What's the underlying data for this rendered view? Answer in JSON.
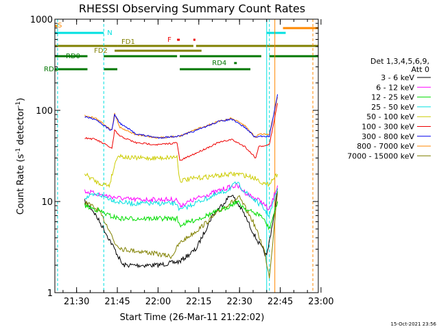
{
  "chart_data": {
    "type": "line",
    "title": "RHESSI Observing Summary Count Rates",
    "xlabel": "Start Time (26-Mar-11 21:22:02)",
    "ylabel_main": "Count Rate (s",
    "ylabel_exp1": "-1",
    "ylabel_mid": " detector",
    "ylabel_exp2": "-1",
    "ylabel_end": ")",
    "yscale": "log",
    "ylim": [
      1,
      1000
    ],
    "xlim": [
      "21:22",
      "22:59"
    ],
    "x_ticks": [
      "21:30",
      "21:45",
      "22:00",
      "22:15",
      "22:30",
      "22:45",
      "23:00"
    ],
    "y_ticks": [
      "1",
      "10",
      "100",
      "1000"
    ],
    "legend_header": [
      "Det 1,3,4,5,6,9,",
      "Att 0"
    ],
    "legend_placement": "right",
    "series": [
      {
        "name": "3 - 6 keV",
        "color": "#000000",
        "points": [
          [
            "21:33",
            10
          ],
          [
            "21:36",
            8
          ],
          [
            "21:40",
            5
          ],
          [
            "21:44",
            3
          ],
          [
            "21:47",
            2
          ],
          [
            "21:52",
            2
          ],
          [
            "22:00",
            2
          ],
          [
            "22:08",
            2.2
          ],
          [
            "22:14",
            3
          ],
          [
            "22:20",
            7
          ],
          [
            "22:27",
            12
          ],
          [
            "22:31",
            8
          ],
          [
            "22:36",
            4
          ],
          [
            "22:40",
            2.5
          ],
          [
            "22:43",
            8
          ],
          [
            "22:44",
            14
          ]
        ]
      },
      {
        "name": "6 - 12 keV",
        "color": "#ff00ff",
        "points": [
          [
            "21:33",
            13
          ],
          [
            "21:38",
            12
          ],
          [
            "21:45",
            11
          ],
          [
            "21:50",
            10.5
          ],
          [
            "22:00",
            10.5
          ],
          [
            "22:07",
            10.5
          ],
          [
            "22:08",
            9
          ],
          [
            "22:15",
            11
          ],
          [
            "22:25",
            14
          ],
          [
            "22:29",
            15
          ],
          [
            "22:33",
            12
          ],
          [
            "22:38",
            10
          ],
          [
            "22:41",
            8
          ],
          [
            "22:44",
            15
          ]
        ]
      },
      {
        "name": "12 - 25 keV",
        "color": "#00dd00",
        "points": [
          [
            "21:33",
            9
          ],
          [
            "21:38",
            8
          ],
          [
            "21:42",
            7
          ],
          [
            "21:46",
            6.5
          ],
          [
            "21:55",
            6.5
          ],
          [
            "22:07",
            6.5
          ],
          [
            "22:08",
            5.5
          ],
          [
            "22:15",
            6.5
          ],
          [
            "22:25",
            8.5
          ],
          [
            "22:29",
            10
          ],
          [
            "22:33",
            8
          ],
          [
            "22:38",
            7
          ],
          [
            "22:41",
            5
          ],
          [
            "22:44",
            10
          ]
        ]
      },
      {
        "name": "25 - 50 keV",
        "color": "#00e0e0",
        "points": [
          [
            "21:33",
            11
          ],
          [
            "21:38",
            12
          ],
          [
            "21:45",
            10
          ],
          [
            "21:50",
            9.5
          ],
          [
            "22:00",
            9.5
          ],
          [
            "22:07",
            9.5
          ],
          [
            "22:08",
            8
          ],
          [
            "22:15",
            10
          ],
          [
            "22:25",
            13
          ],
          [
            "22:29",
            16
          ],
          [
            "22:33",
            12
          ],
          [
            "22:38",
            9
          ],
          [
            "22:41",
            7
          ],
          [
            "22:44",
            14
          ]
        ]
      },
      {
        "name": "50 - 100 keV",
        "color": "#cccc00",
        "points": [
          [
            "21:33",
            20
          ],
          [
            "21:38",
            16
          ],
          [
            "21:42",
            15
          ],
          [
            "21:45",
            32
          ],
          [
            "21:50",
            30
          ],
          [
            "22:00",
            30
          ],
          [
            "22:07",
            31
          ],
          [
            "22:08",
            17
          ],
          [
            "22:14",
            18
          ],
          [
            "22:20",
            19
          ],
          [
            "22:28",
            20
          ],
          [
            "22:30",
            20
          ],
          [
            "22:36",
            18
          ],
          [
            "22:40",
            15
          ],
          [
            "22:44",
            20
          ]
        ]
      },
      {
        "name": "100 - 300 keV",
        "color": "#ee0000",
        "points": [
          [
            "21:33",
            50
          ],
          [
            "21:37",
            48
          ],
          [
            "21:42",
            40
          ],
          [
            "21:43",
            38
          ],
          [
            "21:44",
            60
          ],
          [
            "21:46",
            52
          ],
          [
            "21:52",
            44
          ],
          [
            "22:00",
            42
          ],
          [
            "22:07",
            44
          ],
          [
            "22:08",
            28
          ],
          [
            "22:14",
            34
          ],
          [
            "22:22",
            44
          ],
          [
            "22:27",
            48
          ],
          [
            "22:32",
            40
          ],
          [
            "22:36",
            30
          ],
          [
            "22:37",
            40
          ],
          [
            "22:41",
            42
          ],
          [
            "22:44",
            120
          ]
        ]
      },
      {
        "name": "300 - 800 keV",
        "color": "#0000ee",
        "points": [
          [
            "21:33",
            85
          ],
          [
            "21:37",
            80
          ],
          [
            "21:42",
            62
          ],
          [
            "21:43",
            60
          ],
          [
            "21:44",
            90
          ],
          [
            "21:46",
            72
          ],
          [
            "21:52",
            55
          ],
          [
            "22:00",
            50
          ],
          [
            "22:07",
            52
          ],
          [
            "22:08",
            52
          ],
          [
            "22:14",
            60
          ],
          [
            "22:22",
            75
          ],
          [
            "22:27",
            80
          ],
          [
            "22:32",
            65
          ],
          [
            "22:36",
            50
          ],
          [
            "22:37",
            52
          ],
          [
            "22:41",
            52
          ],
          [
            "22:44",
            150
          ]
        ]
      },
      {
        "name": "800 - 7000 keV",
        "color": "#ff8800",
        "points": [
          [
            "21:33",
            88
          ],
          [
            "21:37",
            82
          ],
          [
            "21:42",
            64
          ],
          [
            "21:43",
            62
          ],
          [
            "21:44",
            92
          ],
          [
            "21:46",
            65
          ],
          [
            "21:52",
            54
          ],
          [
            "22:00",
            50
          ],
          [
            "22:07",
            52
          ],
          [
            "22:08",
            52
          ],
          [
            "22:14",
            62
          ],
          [
            "22:22",
            75
          ],
          [
            "22:27",
            82
          ],
          [
            "22:32",
            68
          ],
          [
            "22:36",
            50
          ],
          [
            "22:37",
            55
          ],
          [
            "22:41",
            55
          ],
          [
            "22:44",
            140
          ]
        ]
      },
      {
        "name": "7000 - 15000 keV",
        "color": "#808000",
        "points": [
          [
            "21:33",
            10
          ],
          [
            "21:38",
            8
          ],
          [
            "21:42",
            5
          ],
          [
            "21:44",
            3.5
          ],
          [
            "21:47",
            3
          ],
          [
            "21:55",
            2.8
          ],
          [
            "22:05",
            2.5
          ],
          [
            "22:08",
            3.5
          ],
          [
            "22:15",
            5
          ],
          [
            "22:25",
            9
          ],
          [
            "22:30",
            11
          ],
          [
            "22:35",
            6
          ],
          [
            "22:39",
            3
          ],
          [
            "22:41",
            1.5
          ],
          [
            "22:44",
            13
          ]
        ]
      }
    ],
    "annotations": [
      {
        "label": "S",
        "color": "#ff8800",
        "segments": [
          [
            "21:22",
            "21:23"
          ]
        ],
        "level": 0
      },
      {
        "label": "N",
        "color": "#00e0e0",
        "segments": [
          [
            "21:22",
            "21:40"
          ],
          [
            "22:40",
            "22:47"
          ]
        ],
        "level": 1
      },
      {
        "label": "F",
        "color": "#ee0000",
        "segments": [
          [
            "22:07",
            "22:08"
          ],
          [
            "22:13",
            "22:13"
          ]
        ],
        "level": 2
      },
      {
        "label": "FD1",
        "color": "#808000",
        "segments": [
          [
            "21:22",
            "21:45"
          ],
          [
            "21:45",
            "22:13"
          ],
          [
            "22:14",
            "22:59"
          ]
        ],
        "level": 3
      },
      {
        "label": "FD2",
        "color": "#808000",
        "segments": [
          [
            "21:44",
            "22:16"
          ]
        ],
        "level": 4
      },
      {
        "label": "RD0",
        "color": "#007700",
        "segments": [
          [
            "21:22",
            "21:34"
          ],
          [
            "21:40",
            "22:07"
          ],
          [
            "22:08",
            "22:38"
          ],
          [
            "22:41",
            "22:59"
          ]
        ],
        "level": 5
      },
      {
        "label": "RD4",
        "color": "#007700",
        "segments": [
          [
            "22:28",
            "22:29"
          ]
        ],
        "level": 6
      },
      {
        "label": "RD8",
        "color": "#007700",
        "segments": [
          [
            "21:22",
            "21:34"
          ],
          [
            "21:40",
            "21:45"
          ],
          [
            "22:08",
            "22:34"
          ]
        ],
        "level": 7
      }
    ],
    "s_bar_right": {
      "color": "#ff8800",
      "segments": [
        [
          "22:46",
          "22:59"
        ]
      ]
    },
    "vertical_markers": [
      {
        "time": "21:23",
        "color": "#00e0e0",
        "style": "dashed"
      },
      {
        "time": "21:40",
        "color": "#00e0e0",
        "style": "dashed"
      },
      {
        "time": "22:40",
        "color": "#00e0e0",
        "style": "solid"
      },
      {
        "time": "22:41",
        "color": "#00e0e0",
        "style": "dashed"
      },
      {
        "time": "22:43",
        "color": "#ff8800",
        "style": "solid"
      },
      {
        "time": "22:57",
        "color": "#ff8800",
        "style": "dashed"
      }
    ]
  },
  "footer_date": "15-Oct-2021 23:56"
}
